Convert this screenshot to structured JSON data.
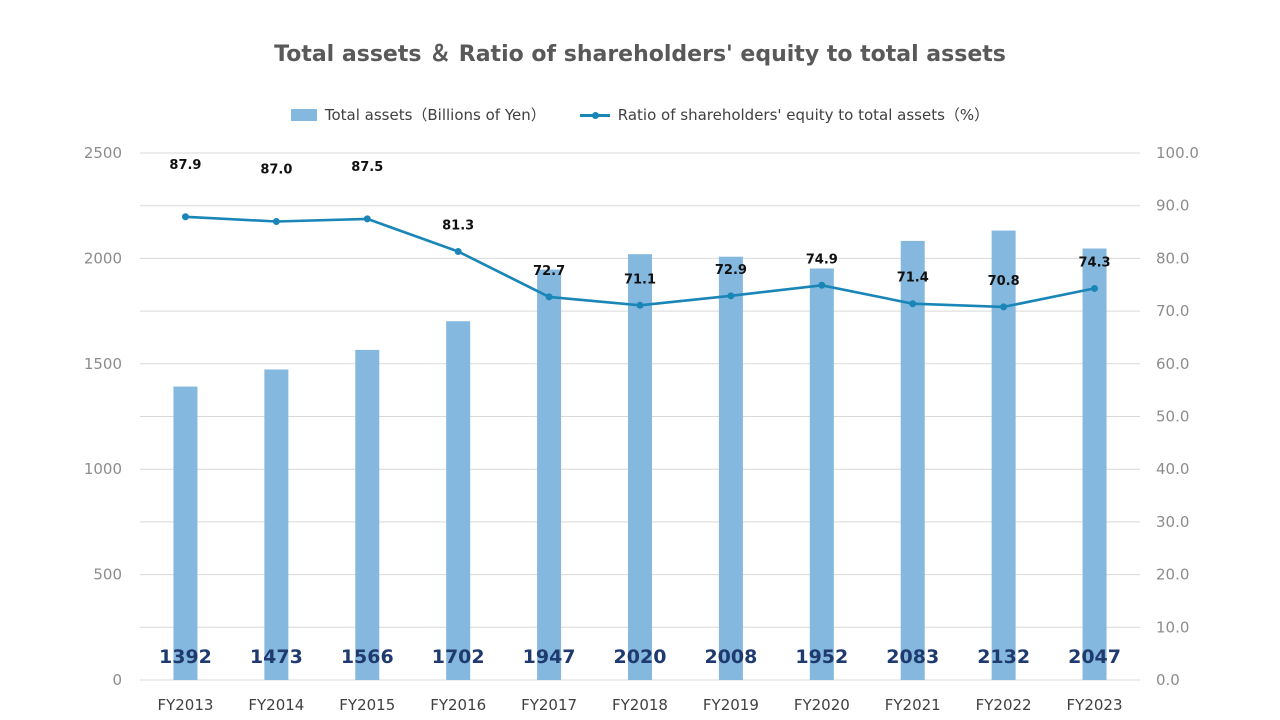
{
  "chart_data": {
    "type": "bar",
    "title": "Total assets ＆ Ratio of shareholders' equity to total assets",
    "categories": [
      "FY2013",
      "FY2014",
      "FY2015",
      "FY2016",
      "FY2017",
      "FY2018",
      "FY2019",
      "FY2020",
      "FY2021",
      "FY2022",
      "FY2023"
    ],
    "series": [
      {
        "name": "Total assets（Billions of Yen）",
        "type": "bar",
        "axis": "left",
        "values": [
          1392,
          1473,
          1566,
          1702,
          1947,
          2020,
          2008,
          1952,
          2083,
          2132,
          2047
        ],
        "labels": [
          "1392",
          "1473",
          "1566",
          "1702",
          "1947",
          "2020",
          "2008",
          "1952",
          "2083",
          "2132",
          "2047"
        ]
      },
      {
        "name": "Ratio of shareholders' equity to total assets（%）",
        "type": "line",
        "axis": "right",
        "values": [
          87.9,
          87.0,
          87.5,
          81.3,
          72.7,
          71.1,
          72.9,
          74.9,
          71.4,
          70.8,
          74.3
        ],
        "labels": [
          "87.9",
          "87.0",
          "87.5",
          "81.3",
          "72.7",
          "71.1",
          "72.9",
          "74.9",
          "71.4",
          "70.8",
          "74.3"
        ]
      }
    ],
    "ylim_left": [
      0,
      2500
    ],
    "ylim_right": [
      0,
      100
    ],
    "left_ticks": [
      "0",
      "500",
      "1000",
      "1500",
      "2000",
      "2500"
    ],
    "right_ticks": [
      "0.0",
      "10.0",
      "20.0",
      "30.0",
      "40.0",
      "50.0",
      "60.0",
      "70.0",
      "80.0",
      "90.0",
      "100.0"
    ],
    "grid": true,
    "legend_position": "top-center",
    "colors": {
      "bar": "#84B8DE",
      "line": "#1A86B8",
      "bar_label": "#1F3A6E",
      "grid": "#D9D9D9"
    }
  }
}
